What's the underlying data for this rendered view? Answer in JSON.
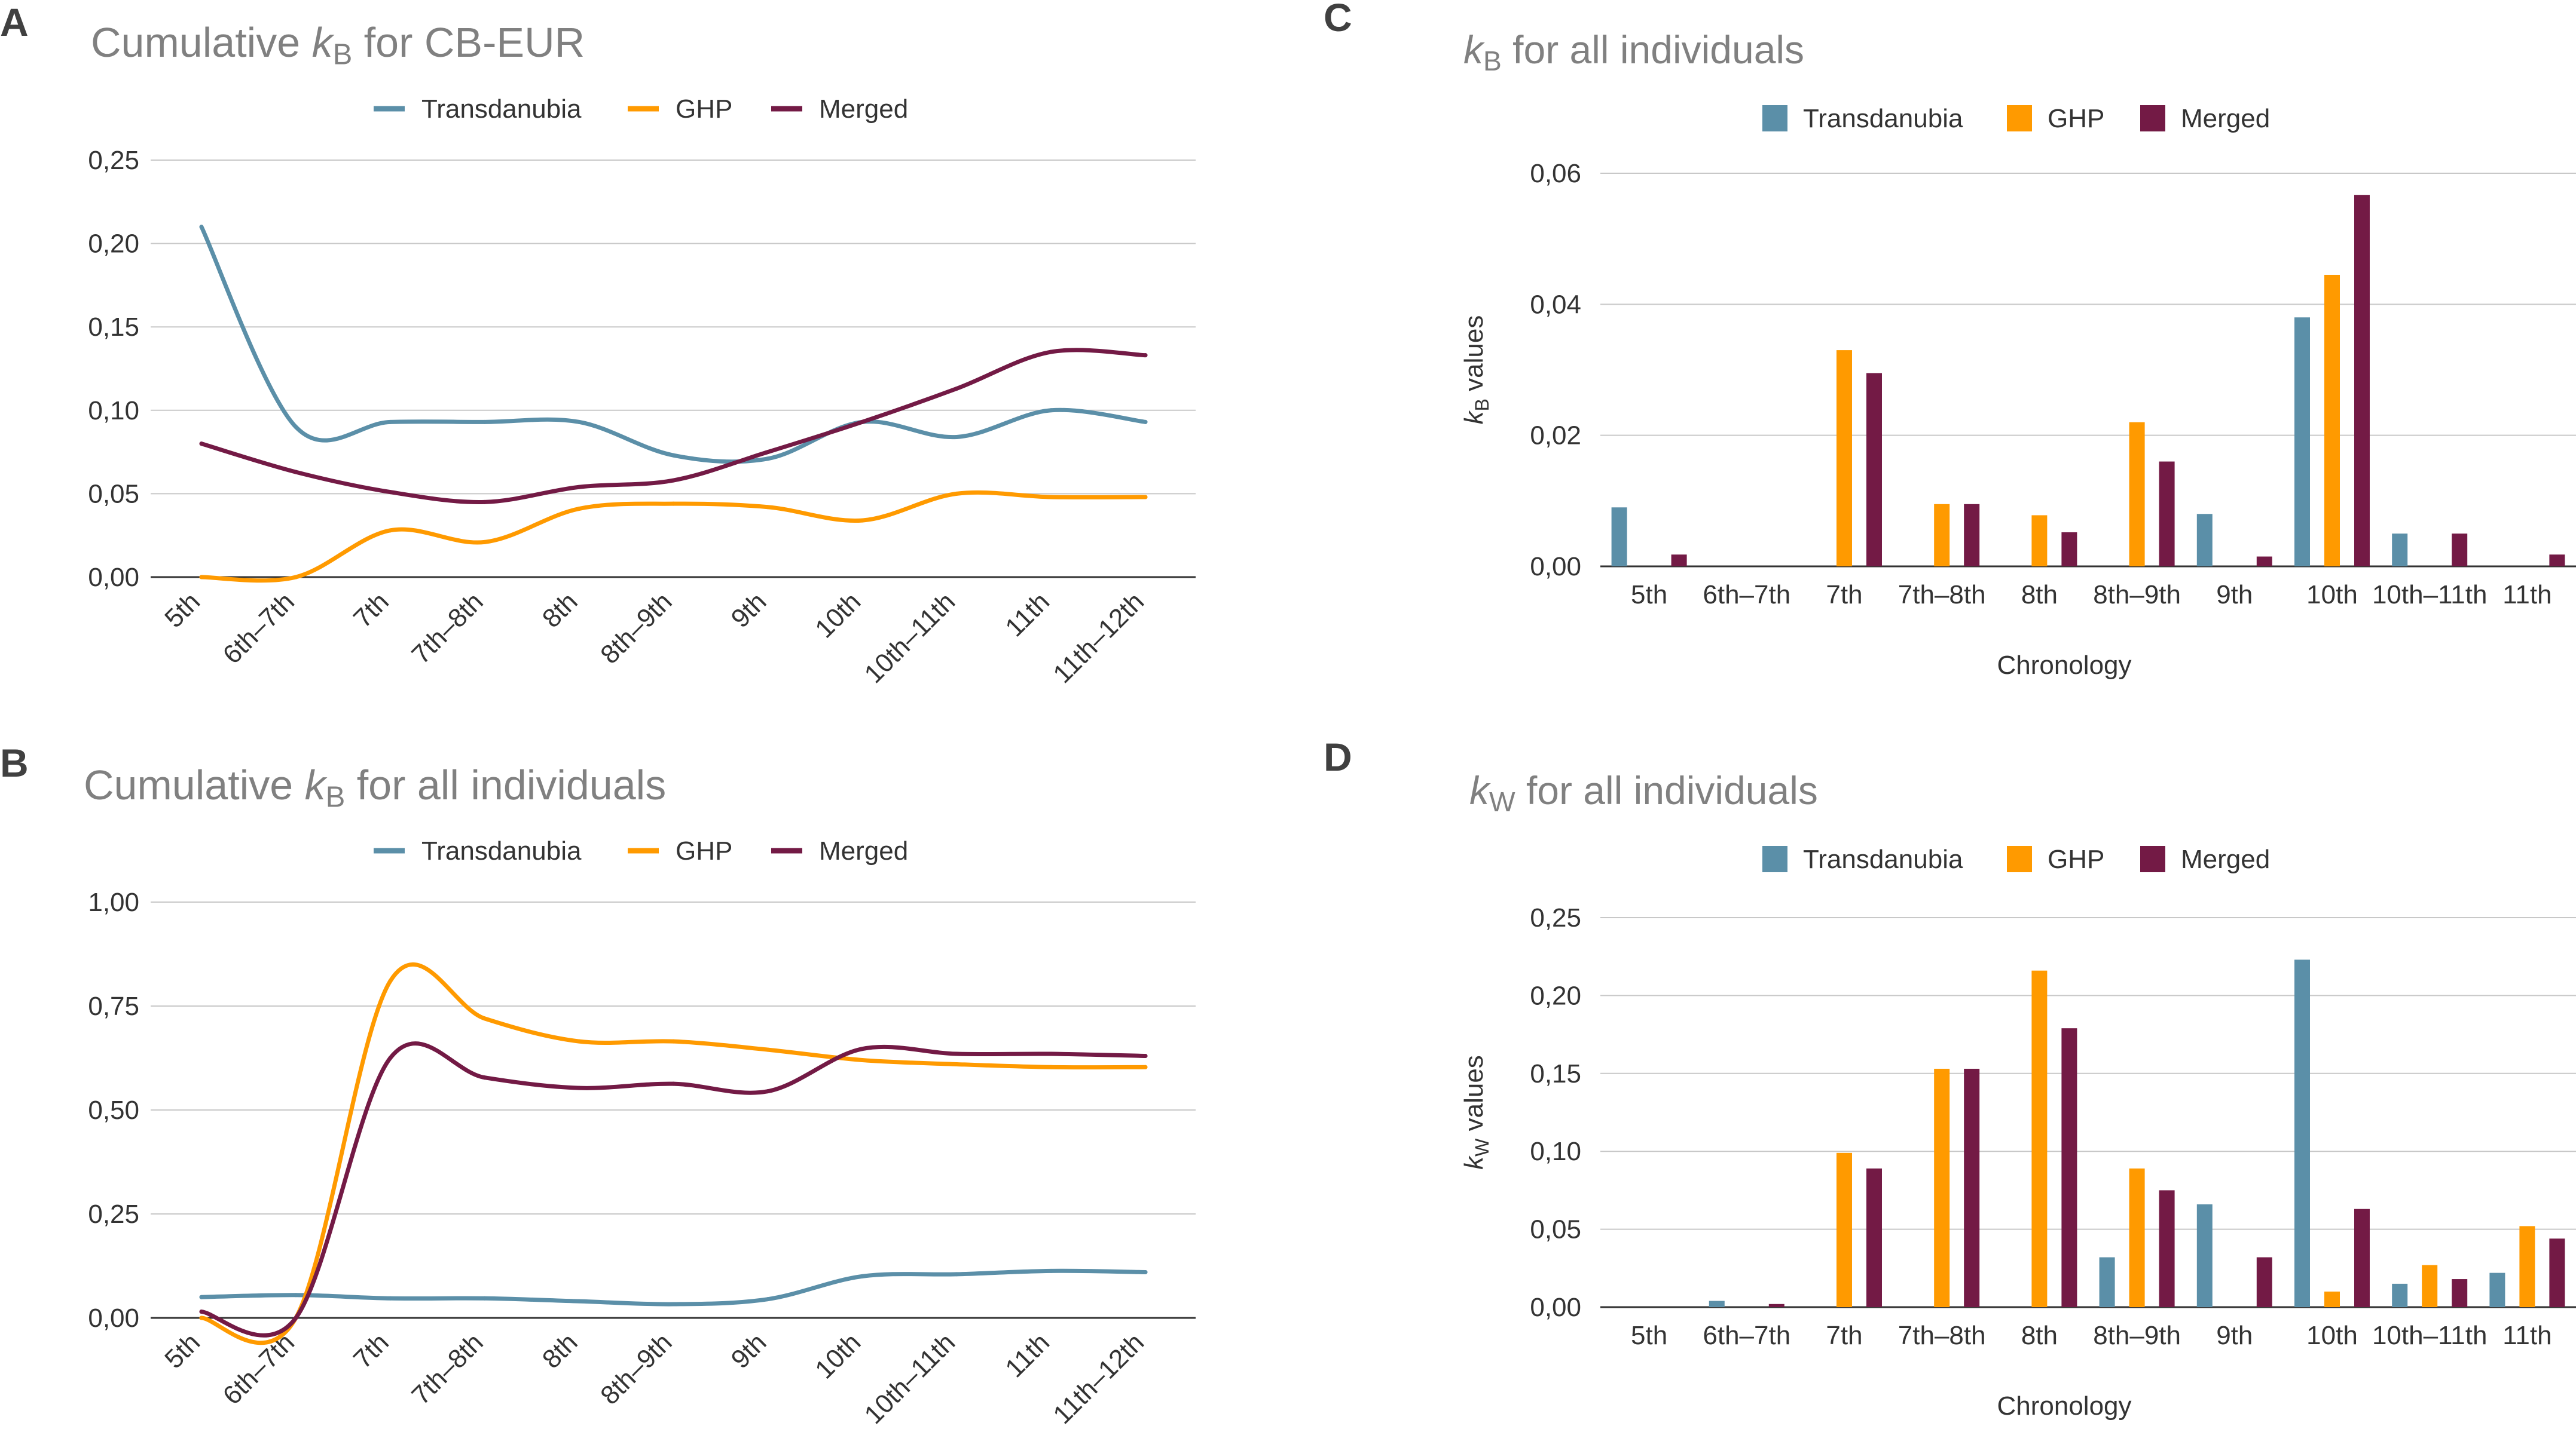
{
  "colors": {
    "transdanubia": "#5b8fa8",
    "ghp": "#ff9a00",
    "merged": "#731a45",
    "title": "#808080",
    "grid": "#c8c8c8",
    "axis": "#333333",
    "text": "#333333"
  },
  "chart_data": [
    {
      "panel": "A",
      "type": "line",
      "title": "Cumulative kB for CB-EUR",
      "title_parts": [
        "Cumulative ",
        "k",
        "B",
        " for CB-EUR"
      ],
      "categories": [
        "5th",
        "6th–7th",
        "7th",
        "7th–8th",
        "8th",
        "8th–9th",
        "9th",
        "10th",
        "10th–11th",
        "11th",
        "11th–12th"
      ],
      "series": [
        {
          "name": "Transdanubia",
          "values": [
            0.21,
            0.09,
            0.093,
            0.093,
            0.093,
            0.073,
            0.071,
            0.093,
            0.084,
            0.1,
            0.093
          ]
        },
        {
          "name": "GHP",
          "values": [
            0.0,
            0.0,
            0.028,
            0.021,
            0.041,
            0.044,
            0.042,
            0.034,
            0.05,
            0.048,
            0.048
          ]
        },
        {
          "name": "Merged",
          "values": [
            0.08,
            0.063,
            0.051,
            0.045,
            0.054,
            0.058,
            0.075,
            0.093,
            0.113,
            0.135,
            0.133
          ]
        }
      ],
      "y_ticks": [
        "0,00",
        "0,05",
        "0,10",
        "0,15",
        "0,20",
        "0,25"
      ],
      "ylim": [
        0,
        0.25
      ],
      "xlabel": "",
      "ylabel": "",
      "grid": true,
      "legend": "top"
    },
    {
      "panel": "B",
      "type": "line",
      "title": "Cumulative kB for all individuals",
      "title_parts": [
        "Cumulative  ",
        "k",
        "B",
        " for all individuals"
      ],
      "categories": [
        "5th",
        "6th–7th",
        "7th",
        "7th–8th",
        "8th",
        "8th–9th",
        "9th",
        "10th",
        "10th–11th",
        "11th",
        "11th–12th"
      ],
      "series": [
        {
          "name": "Transdanubia",
          "values": [
            0.05,
            0.055,
            0.047,
            0.047,
            0.04,
            0.033,
            0.045,
            0.1,
            0.105,
            0.113,
            0.11
          ]
        },
        {
          "name": "GHP",
          "values": [
            0.0,
            0.0,
            0.81,
            0.72,
            0.665,
            0.665,
            0.645,
            0.62,
            0.61,
            0.603,
            0.603
          ]
        },
        {
          "name": "Merged",
          "values": [
            0.015,
            0.0,
            0.625,
            0.578,
            0.553,
            0.563,
            0.545,
            0.647,
            0.635,
            0.635,
            0.63
          ]
        }
      ],
      "y_ticks": [
        "0,00",
        "0,25",
        "0,50",
        "0,75",
        "1,00"
      ],
      "ylim": [
        0,
        1
      ],
      "xlabel": "",
      "ylabel": "",
      "grid": true,
      "legend": "top"
    },
    {
      "panel": "C",
      "type": "bar",
      "title": "kB for all individuals",
      "title_parts": [
        "",
        "k",
        "B",
        " for all individuals"
      ],
      "categories": [
        "5th",
        "6th–7th",
        "7th",
        "7th–8th",
        "8th",
        "8th–9th",
        "9th",
        "10th",
        "10th–11th",
        "11th"
      ],
      "series": [
        {
          "name": "Transdanubia",
          "values": [
            0.009,
            0,
            0,
            0,
            0,
            0,
            0.008,
            0.038,
            0.005,
            0
          ]
        },
        {
          "name": "GHP",
          "values": [
            0,
            0,
            0.033,
            0.0095,
            0.0078,
            0.022,
            0,
            0.0445,
            0,
            0
          ]
        },
        {
          "name": "Merged",
          "values": [
            0.0018,
            0,
            0.0295,
            0.0095,
            0.0052,
            0.016,
            0.0015,
            0.0567,
            0.005,
            0.0018
          ]
        }
      ],
      "y_ticks": [
        "0,00",
        "0,02",
        "0,04",
        "0,06"
      ],
      "ylim": [
        0,
        0.06
      ],
      "xlabel": "Chronology",
      "ylabel_parts": [
        "k",
        "B",
        " values"
      ],
      "grid": true,
      "legend": "top"
    },
    {
      "panel": "D",
      "type": "bar",
      "title": "kW for all individuals",
      "title_parts": [
        "",
        "k",
        "W",
        " for all individuals"
      ],
      "categories": [
        "5th",
        "6th–7th",
        "7th",
        "7th–8th",
        "8th",
        "8th–9th",
        "9th",
        "10th",
        "10th–11th",
        "11th"
      ],
      "series": [
        {
          "name": "Transdanubia",
          "values": [
            0,
            0.004,
            0,
            0,
            0,
            0.032,
            0.066,
            0.223,
            0.015,
            0.022
          ]
        },
        {
          "name": "GHP",
          "values": [
            0,
            0,
            0.099,
            0.153,
            0.216,
            0.089,
            0,
            0.01,
            0.027,
            0.052
          ]
        },
        {
          "name": "Merged",
          "values": [
            0,
            0.002,
            0.089,
            0.153,
            0.179,
            0.075,
            0.032,
            0.063,
            0.018,
            0.044
          ]
        }
      ],
      "y_ticks": [
        "0,00",
        "0,05",
        "0,10",
        "0,15",
        "0,20",
        "0,25"
      ],
      "ylim": [
        0,
        0.25
      ],
      "xlabel": "Chronology",
      "ylabel_parts": [
        "k",
        "W",
        " values"
      ],
      "grid": true,
      "legend": "top"
    }
  ]
}
